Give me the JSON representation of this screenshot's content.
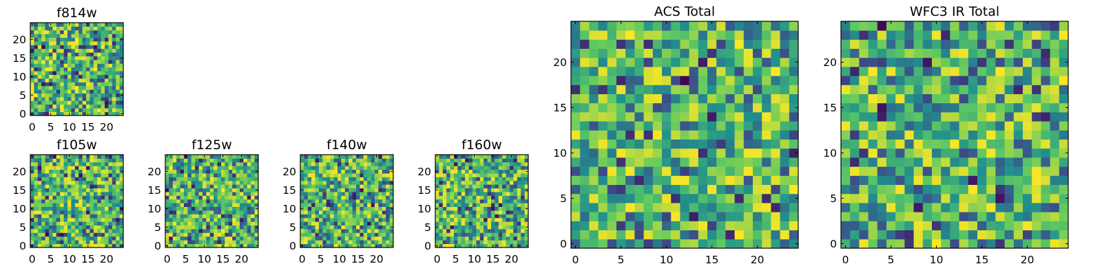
{
  "figure": {
    "colormap": "viridis",
    "colors": {
      "viridis": [
        "#440154",
        "#3b528b",
        "#21918c",
        "#5ec962",
        "#fde725"
      ]
    }
  },
  "chart_data": [
    {
      "type": "heatmap",
      "id": "f814w",
      "title": "f814w",
      "grid_size": 25,
      "xlim": [
        -0.5,
        24.5
      ],
      "ylim": [
        -0.5,
        24.5
      ],
      "x_ticks": [
        0,
        5,
        10,
        15,
        20
      ],
      "y_ticks": [
        0,
        5,
        10,
        15,
        20
      ],
      "x_tick_labels": [
        "0",
        "5",
        "10",
        "15",
        "20"
      ],
      "y_tick_labels": [
        "0",
        "5",
        "10",
        "15",
        "20"
      ],
      "value_range": [
        0,
        1
      ],
      "seed": 814
    },
    {
      "type": "heatmap",
      "id": "f105w",
      "title": "f105w",
      "grid_size": 25,
      "xlim": [
        -0.5,
        24.5
      ],
      "ylim": [
        -0.5,
        24.5
      ],
      "x_ticks": [
        0,
        5,
        10,
        15,
        20
      ],
      "y_ticks": [
        0,
        5,
        10,
        15,
        20
      ],
      "x_tick_labels": [
        "0",
        "5",
        "10",
        "15",
        "20"
      ],
      "y_tick_labels": [
        "0",
        "5",
        "10",
        "15",
        "20"
      ],
      "value_range": [
        0,
        1
      ],
      "seed": 105
    },
    {
      "type": "heatmap",
      "id": "f125w",
      "title": "f125w",
      "grid_size": 25,
      "xlim": [
        -0.5,
        24.5
      ],
      "ylim": [
        -0.5,
        24.5
      ],
      "x_ticks": [
        0,
        5,
        10,
        15,
        20
      ],
      "y_ticks": [
        0,
        5,
        10,
        15,
        20
      ],
      "x_tick_labels": [
        "0",
        "5",
        "10",
        "15",
        "20"
      ],
      "y_tick_labels": [
        "0",
        "5",
        "10",
        "15",
        "20"
      ],
      "value_range": [
        0,
        1
      ],
      "seed": 125
    },
    {
      "type": "heatmap",
      "id": "f140w",
      "title": "f140w",
      "grid_size": 25,
      "xlim": [
        -0.5,
        24.5
      ],
      "ylim": [
        -0.5,
        24.5
      ],
      "x_ticks": [
        0,
        5,
        10,
        15,
        20
      ],
      "y_ticks": [
        0,
        5,
        10,
        15,
        20
      ],
      "x_tick_labels": [
        "0",
        "5",
        "10",
        "15",
        "20"
      ],
      "y_tick_labels": [
        "0",
        "5",
        "10",
        "15",
        "20"
      ],
      "value_range": [
        0,
        1
      ],
      "seed": 140
    },
    {
      "type": "heatmap",
      "id": "f160w",
      "title": "f160w",
      "grid_size": 25,
      "xlim": [
        -0.5,
        24.5
      ],
      "ylim": [
        -0.5,
        24.5
      ],
      "x_ticks": [
        0,
        5,
        10,
        15,
        20
      ],
      "y_ticks": [
        0,
        5,
        10,
        15,
        20
      ],
      "x_tick_labels": [
        "0",
        "5",
        "10",
        "15",
        "20"
      ],
      "y_tick_labels": [
        "0",
        "5",
        "10",
        "15",
        "20"
      ],
      "value_range": [
        0,
        1
      ],
      "seed": 160
    },
    {
      "type": "heatmap",
      "id": "acs-total",
      "title": "ACS Total",
      "grid_size": 25,
      "xlim": [
        -0.5,
        24.5
      ],
      "ylim": [
        -0.5,
        24.5
      ],
      "x_ticks": [
        0,
        5,
        10,
        15,
        20
      ],
      "y_ticks": [
        0,
        5,
        10,
        15,
        20
      ],
      "x_tick_labels": [
        "0",
        "5",
        "10",
        "15",
        "20"
      ],
      "y_tick_labels": [
        "0",
        "5",
        "10",
        "15",
        "20"
      ],
      "value_range": [
        0,
        1
      ],
      "seed": 2001
    },
    {
      "type": "heatmap",
      "id": "wfc3-ir-total",
      "title": "WFC3 IR Total",
      "grid_size": 25,
      "xlim": [
        -0.5,
        24.5
      ],
      "ylim": [
        -0.5,
        24.5
      ],
      "x_ticks": [
        0,
        5,
        10,
        15,
        20
      ],
      "y_ticks": [
        0,
        5,
        10,
        15,
        20
      ],
      "x_tick_labels": [
        "0",
        "5",
        "10",
        "15",
        "20"
      ],
      "y_tick_labels": [
        "0",
        "5",
        "10",
        "15",
        "20"
      ],
      "value_range": [
        0,
        1
      ],
      "seed": 3003
    }
  ]
}
